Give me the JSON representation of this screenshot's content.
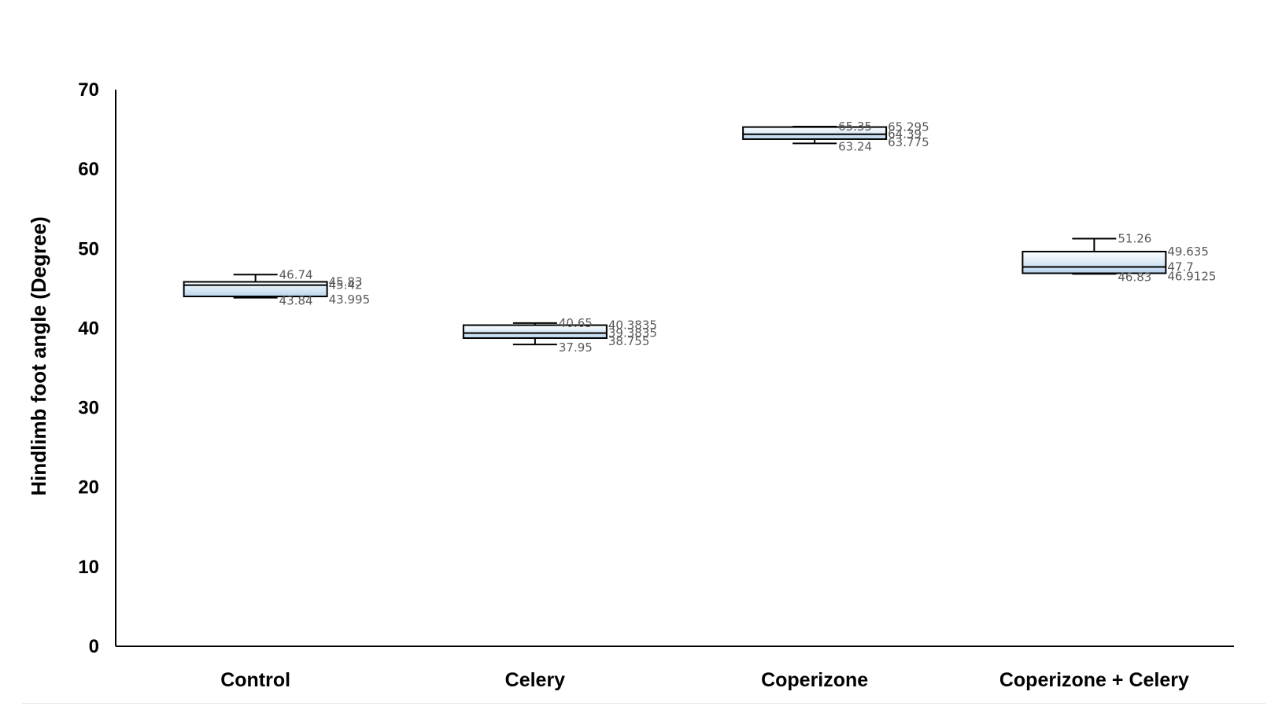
{
  "chart_data": {
    "type": "box",
    "ylabel": "Hindlimb foot angle (Degree)",
    "xlabel": "",
    "ylim": [
      0,
      70
    ],
    "yticks": [
      0,
      10,
      20,
      30,
      40,
      50,
      60,
      70
    ],
    "grid": false,
    "categories": [
      "Control",
      "Celery",
      "Coperizone",
      "Coperizone + Celery"
    ],
    "boxes": [
      {
        "category": "Control",
        "min": 43.84,
        "q1": 43.995,
        "median": 45.42,
        "q3": 45.83,
        "max": 46.74,
        "labels": [
          "46.74",
          "45.83",
          "45.42",
          "43.84",
          "43.995"
        ]
      },
      {
        "category": "Celery",
        "min": 37.95,
        "q1": 38.755,
        "median": 39.3835,
        "q3": 40.3835,
        "max": 40.65,
        "labels": [
          "40.65",
          "40.3835",
          "39.3835",
          "37.95",
          "38.755"
        ]
      },
      {
        "category": "Coperizone",
        "min": 63.24,
        "q1": 63.775,
        "median": 64.39,
        "q3": 65.295,
        "max": 65.35,
        "labels": [
          "65.35",
          "65.295",
          "64.39",
          "63.24",
          "63.775"
        ]
      },
      {
        "category": "Coperizone + Celery",
        "min": 46.83,
        "q1": 46.9125,
        "median": 47.7,
        "q3": 49.635,
        "max": 51.26,
        "labels": [
          "51.26",
          "49.635",
          "47.7",
          "46.83",
          "46.9125"
        ]
      }
    ],
    "colors": {
      "box_top": "#ffffff",
      "box_bottom": "#b8d4ee",
      "stroke": "#000000",
      "label": "#595959"
    }
  }
}
